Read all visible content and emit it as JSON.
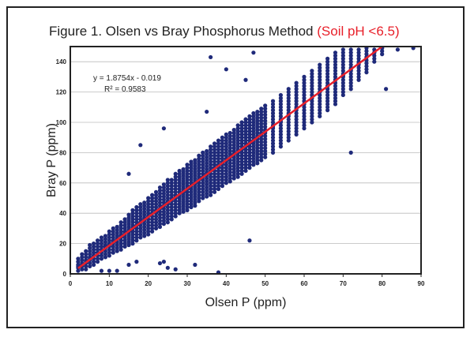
{
  "chart_data": {
    "type": "scatter",
    "title": "Figure 1.   Olsen vs Bray Phosphorus Method",
    "subtitle": "(Soil pH <6.5)",
    "xlabel": "Olsen P (ppm)",
    "ylabel": "Bray P (ppm)",
    "xlim": [
      0,
      90
    ],
    "ylim": [
      0,
      150
    ],
    "xticks": [
      "0",
      "10",
      "20",
      "30",
      "40",
      "50",
      "60",
      "70",
      "80",
      "90"
    ],
    "yticks": [
      "0",
      "20",
      "40",
      "60",
      "80",
      "100",
      "120",
      "140"
    ],
    "grid": "horizontal",
    "point_color": "#1f2a7a",
    "trendline": {
      "slope": 1.8754,
      "intercept": -0.019,
      "x_range": [
        2,
        80
      ],
      "color": "#e8202a",
      "equation": "y = 1.8754x - 0.019",
      "r2": "R² = 0.9583"
    },
    "columns": [
      {
        "x": 2,
        "y": [
          2,
          5,
          10
        ]
      },
      {
        "x": 3,
        "y": [
          3,
          6,
          14
        ]
      },
      {
        "x": 4,
        "y": [
          3,
          8,
          16
        ]
      },
      {
        "x": 5,
        "y": [
          5,
          10,
          19
        ]
      },
      {
        "x": 6,
        "y": [
          6,
          12,
          20
        ]
      },
      {
        "x": 7,
        "y": [
          8,
          14,
          22
        ]
      },
      {
        "x": 8,
        "y": [
          10,
          16,
          24
        ]
      },
      {
        "x": 9,
        "y": [
          11,
          18,
          26
        ]
      },
      {
        "x": 10,
        "y": [
          12,
          19,
          28
        ]
      },
      {
        "x": 11,
        "y": [
          14,
          21,
          30
        ]
      },
      {
        "x": 12,
        "y": [
          15,
          23,
          32
        ]
      },
      {
        "x": 13,
        "y": [
          16,
          25,
          35
        ]
      },
      {
        "x": 14,
        "y": [
          18,
          27,
          37
        ]
      },
      {
        "x": 15,
        "y": [
          19,
          28,
          40
        ]
      },
      {
        "x": 16,
        "y": [
          20,
          30,
          42
        ]
      },
      {
        "x": 17,
        "y": [
          22,
          32,
          44
        ]
      },
      {
        "x": 18,
        "y": [
          24,
          34,
          46
        ]
      },
      {
        "x": 19,
        "y": [
          25,
          36,
          48
        ]
      },
      {
        "x": 20,
        "y": [
          26,
          38,
          50
        ]
      },
      {
        "x": 21,
        "y": [
          28,
          40,
          52
        ]
      },
      {
        "x": 22,
        "y": [
          30,
          41,
          54
        ]
      },
      {
        "x": 23,
        "y": [
          31,
          43,
          57
        ]
      },
      {
        "x": 24,
        "y": [
          33,
          45,
          60
        ]
      },
      {
        "x": 25,
        "y": [
          34,
          47,
          62
        ]
      },
      {
        "x": 26,
        "y": [
          36,
          49,
          63
        ]
      },
      {
        "x": 27,
        "y": [
          38,
          51,
          66
        ]
      },
      {
        "x": 28,
        "y": [
          40,
          52,
          68
        ]
      },
      {
        "x": 29,
        "y": [
          41,
          54,
          70
        ]
      },
      {
        "x": 30,
        "y": [
          42,
          56,
          72
        ]
      },
      {
        "x": 31,
        "y": [
          44,
          58,
          74
        ]
      },
      {
        "x": 32,
        "y": [
          45,
          60,
          76
        ]
      },
      {
        "x": 33,
        "y": [
          48,
          62,
          78
        ]
      },
      {
        "x": 34,
        "y": [
          50,
          64,
          80
        ]
      },
      {
        "x": 35,
        "y": [
          51,
          66,
          82
        ]
      },
      {
        "x": 36,
        "y": [
          52,
          68,
          84
        ]
      },
      {
        "x": 37,
        "y": [
          54,
          70,
          86
        ]
      },
      {
        "x": 38,
        "y": [
          56,
          71,
          88
        ]
      },
      {
        "x": 39,
        "y": [
          58,
          73,
          90
        ]
      },
      {
        "x": 40,
        "y": [
          60,
          75,
          92
        ]
      },
      {
        "x": 41,
        "y": [
          61,
          77,
          94
        ]
      },
      {
        "x": 42,
        "y": [
          63,
          79,
          96
        ]
      },
      {
        "x": 43,
        "y": [
          64,
          80,
          98
        ]
      },
      {
        "x": 44,
        "y": [
          66,
          82,
          100
        ]
      },
      {
        "x": 45,
        "y": [
          68,
          84,
          102
        ]
      },
      {
        "x": 46,
        "y": [
          70,
          86,
          104
        ]
      },
      {
        "x": 47,
        "y": [
          72,
          88,
          106
        ]
      },
      {
        "x": 48,
        "y": [
          73,
          90,
          108
        ]
      },
      {
        "x": 49,
        "y": [
          75,
          92,
          110
        ]
      },
      {
        "x": 50,
        "y": [
          77,
          94,
          112
        ]
      },
      {
        "x": 52,
        "y": [
          80,
          97,
          115
        ]
      },
      {
        "x": 54,
        "y": [
          84,
          101,
          118
        ]
      },
      {
        "x": 56,
        "y": [
          88,
          105,
          122
        ]
      },
      {
        "x": 58,
        "y": [
          92,
          109,
          126
        ]
      },
      {
        "x": 60,
        "y": [
          96,
          112,
          130
        ]
      },
      {
        "x": 62,
        "y": [
          100,
          116,
          134
        ]
      },
      {
        "x": 64,
        "y": [
          104,
          120,
          138
        ]
      },
      {
        "x": 66,
        "y": [
          108,
          124,
          142
        ]
      },
      {
        "x": 68,
        "y": [
          112,
          128,
          146
        ]
      },
      {
        "x": 70,
        "y": [
          118,
          131,
          148
        ]
      },
      {
        "x": 72,
        "y": [
          122,
          135,
          149
        ]
      },
      {
        "x": 74,
        "y": [
          128,
          139,
          149
        ]
      },
      {
        "x": 76,
        "y": [
          133,
          143,
          149
        ]
      },
      {
        "x": 78,
        "y": [
          140,
          146,
          149
        ]
      },
      {
        "x": 80,
        "y": [
          145,
          149,
          149
        ]
      }
    ],
    "outliers": [
      [
        38,
        1
      ],
      [
        32,
        6
      ],
      [
        25,
        4
      ],
      [
        27,
        3
      ],
      [
        24,
        8
      ],
      [
        23,
        7
      ],
      [
        17,
        8
      ],
      [
        15,
        6
      ],
      [
        12,
        2
      ],
      [
        10,
        2
      ],
      [
        8,
        2
      ],
      [
        46,
        22
      ],
      [
        72,
        80
      ],
      [
        47,
        146
      ],
      [
        36,
        143
      ],
      [
        40,
        135
      ],
      [
        88,
        149
      ],
      [
        84,
        148
      ],
      [
        81,
        122
      ],
      [
        24,
        96
      ],
      [
        18,
        85
      ],
      [
        15,
        66
      ],
      [
        35,
        107
      ],
      [
        45,
        128
      ]
    ]
  }
}
